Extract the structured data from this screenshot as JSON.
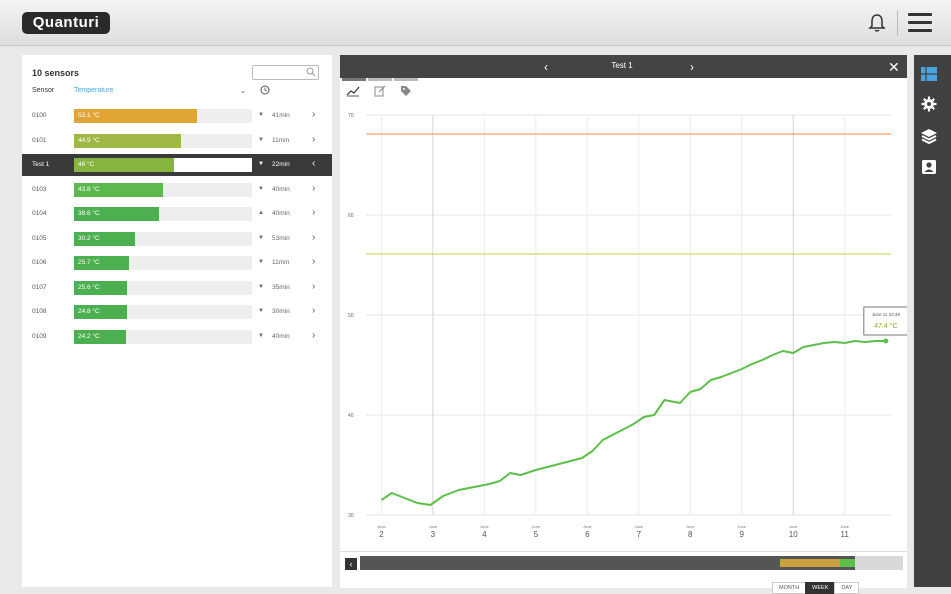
{
  "app": {
    "logo": "Quanturi"
  },
  "sensors": {
    "count_label": "10 sensors",
    "search_placeholder": "",
    "header_sensor": "Sensor",
    "header_type": "Temperature",
    "header_dropdown": "⌄",
    "rows": [
      {
        "name": "0100",
        "value": "53.1 °C",
        "fraction": 0.69,
        "color": "#e0a534",
        "trend": "▼",
        "age": "41min"
      },
      {
        "name": "0101",
        "value": "44.9 °C",
        "fraction": 0.6,
        "color": "#9fb844",
        "trend": "▼",
        "age": "11min"
      },
      {
        "name": "Test 1",
        "value": "46 °C",
        "fraction": 0.56,
        "color": "#86b43d",
        "trend": "▼",
        "age": "22min",
        "selected": true
      },
      {
        "name": "0103",
        "value": "43.8 °C",
        "fraction": 0.5,
        "color": "#5db94e",
        "trend": "▼",
        "age": "40min"
      },
      {
        "name": "0104",
        "value": "38.6 °C",
        "fraction": 0.48,
        "color": "#4caf50",
        "trend": "▲",
        "age": "40min"
      },
      {
        "name": "0105",
        "value": "30.2 °C",
        "fraction": 0.34,
        "color": "#4caf50",
        "trend": "▼",
        "age": "53min"
      },
      {
        "name": "0106",
        "value": "25.7 °C",
        "fraction": 0.31,
        "color": "#4caf50",
        "trend": "▼",
        "age": "11min"
      },
      {
        "name": "0107",
        "value": "25.6 °C",
        "fraction": 0.3,
        "color": "#4caf50",
        "trend": "▼",
        "age": "35min"
      },
      {
        "name": "0108",
        "value": "24.8 °C",
        "fraction": 0.3,
        "color": "#4caf50",
        "trend": "▼",
        "age": "30min"
      },
      {
        "name": "0109",
        "value": "24.2 °C",
        "fraction": 0.29,
        "color": "#4caf50",
        "trend": "▼",
        "age": "40min"
      }
    ]
  },
  "chart_panel": {
    "title": "Test 1",
    "prev_label": "‹",
    "next_label": "›",
    "close_label": "✕",
    "tooltip_time": "June 11 23:49",
    "tooltip_value": "47.4 °C"
  },
  "chart_data": {
    "type": "line",
    "title": "",
    "xlabel": "",
    "ylabel": "",
    "xlim": [
      1.7,
      11.9
    ],
    "ylim": [
      30,
      70
    ],
    "yticks": [
      30,
      40,
      50,
      60,
      70
    ],
    "xticks": [
      {
        "value": 2,
        "month": "June",
        "day": "2"
      },
      {
        "value": 3,
        "month": "June",
        "day": "3"
      },
      {
        "value": 4,
        "month": "June",
        "day": "4"
      },
      {
        "value": 5,
        "month": "June",
        "day": "5"
      },
      {
        "value": 6,
        "month": "June",
        "day": "6"
      },
      {
        "value": 7,
        "month": "June",
        "day": "7"
      },
      {
        "value": 8,
        "month": "June",
        "day": "8"
      },
      {
        "value": 9,
        "month": "June",
        "day": "9"
      },
      {
        "value": 10,
        "month": "June",
        "day": "10"
      },
      {
        "value": 11,
        "month": "June",
        "day": "11"
      }
    ],
    "threshold_lines": [
      {
        "y": 68.1,
        "color": "#f0a36a"
      },
      {
        "y": 56.1,
        "color": "#d7d56a"
      }
    ],
    "series": [
      {
        "color": "#5bbf4a",
        "x": [
          2.0,
          2.2,
          2.4,
          2.7,
          2.95,
          3.2,
          3.5,
          3.8,
          4.1,
          4.3,
          4.5,
          4.7,
          5.0,
          5.3,
          5.6,
          5.9,
          6.1,
          6.3,
          6.6,
          6.9,
          7.1,
          7.3,
          7.5,
          7.8,
          8.0,
          8.2,
          8.4,
          8.6,
          8.8,
          9.0,
          9.2,
          9.4,
          9.6,
          9.8,
          10.0,
          10.2,
          10.4,
          10.6,
          10.8,
          11.0,
          11.2,
          11.4,
          11.6,
          11.8
        ],
        "y": [
          31.5,
          32.2,
          31.8,
          31.2,
          31.0,
          31.9,
          32.5,
          32.8,
          33.1,
          33.4,
          34.2,
          34.0,
          34.5,
          34.9,
          35.3,
          35.7,
          36.4,
          37.5,
          38.3,
          39.1,
          39.8,
          40.0,
          41.5,
          41.2,
          42.3,
          42.6,
          43.5,
          43.8,
          44.2,
          44.6,
          45.1,
          45.5,
          46.0,
          46.4,
          46.2,
          46.8,
          47.0,
          47.2,
          47.3,
          47.2,
          47.4,
          47.3,
          47.4,
          47.4
        ]
      }
    ]
  },
  "timeline": {
    "back_label": "‹",
    "buttons": [
      "MONTH",
      "WEEK",
      "DAY"
    ],
    "active_index": 1
  },
  "colors": {
    "accent": "#4aa3df",
    "dark": "#3a3a3a"
  },
  "icons": {
    "topbar": [
      "bell-icon",
      "hamburger-menu-icon"
    ],
    "rightnav": [
      "dashboard-icon",
      "settings-gear-icon",
      "layers-icon",
      "account-icon"
    ]
  }
}
